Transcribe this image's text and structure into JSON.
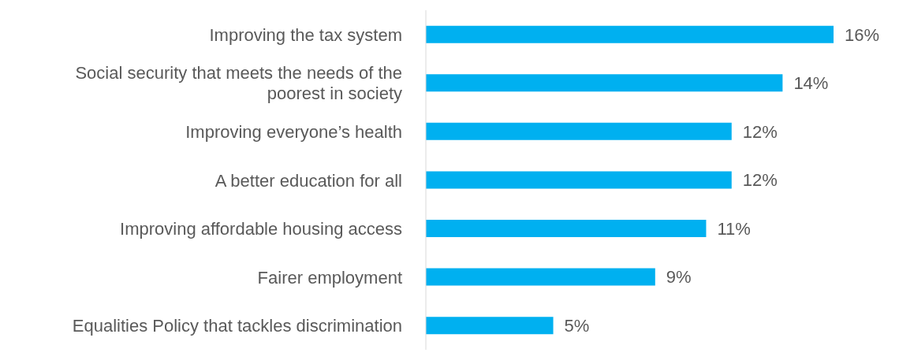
{
  "chart_data": {
    "type": "bar",
    "orientation": "horizontal",
    "categories": [
      "Improving the tax system",
      "Social security that meets the needs of the poorest in society",
      "Improving everyone’s health",
      "A better education for all",
      "Improving affordable housing access",
      "Fairer employment",
      "Equalities Policy that tackles discrimination"
    ],
    "values": [
      16,
      14,
      12,
      12,
      11,
      9,
      5
    ],
    "value_labels": [
      "16%",
      "14%",
      "12%",
      "12%",
      "11%",
      "9%",
      "5%"
    ],
    "color": "#00b0f0"
  }
}
